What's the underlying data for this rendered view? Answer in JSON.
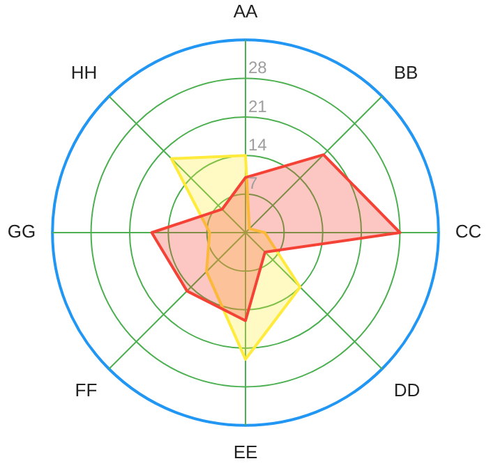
{
  "chart_data": {
    "type": "radar",
    "categories": [
      "AA",
      "BB",
      "CC",
      "DD",
      "EE",
      "FF",
      "GG",
      "HH"
    ],
    "series": [
      {
        "color": "#f44336",
        "values": [
          10,
          20,
          28,
          5,
          16,
          15,
          17,
          6
        ]
      },
      {
        "color": "#ffeb3b",
        "values": [
          14,
          1,
          3.5,
          14,
          23,
          10,
          6.5,
          19
        ]
      }
    ],
    "ylim": [
      0,
      35
    ],
    "yticks": [
      7,
      14,
      21,
      28
    ],
    "grid": true,
    "legend": false,
    "marker": "none"
  }
}
